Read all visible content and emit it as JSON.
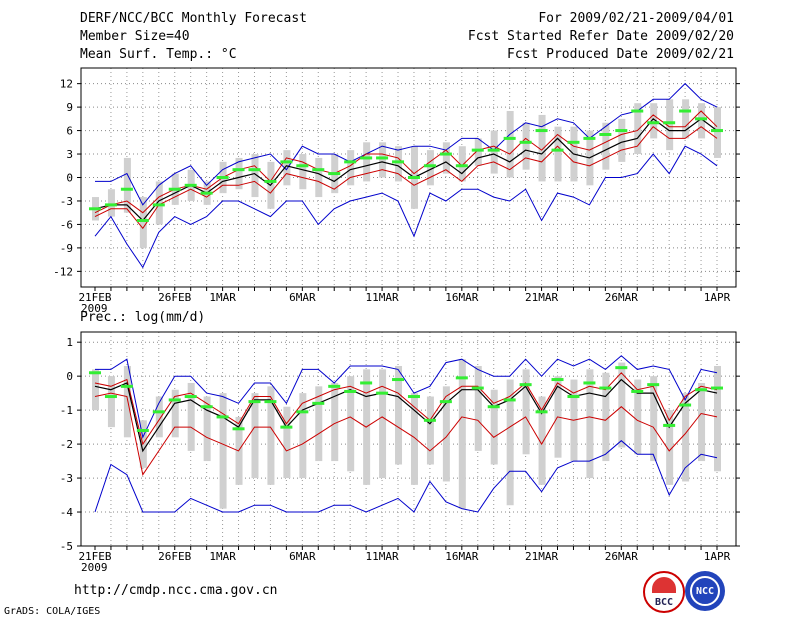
{
  "header": {
    "title": "DERF/NCC/BCC Monthly Forecast",
    "member_size": "Member Size=40",
    "variable": "Mean Surf. Temp.: °C",
    "period": "For 2009/02/21-2009/04/01",
    "fcst_started": "Fcst Started Refer Date 2009/02/20",
    "fcst_produced": "Fcst Produced Date 2009/02/21"
  },
  "footer": {
    "url": "http://cmdp.ncc.cma.gov.cn",
    "credit": "GrADS: COLA/IGES",
    "logo_bcc": "BCC",
    "logo_ncc": "NCC"
  },
  "colors": {
    "envelope": "#0000cc",
    "spread": "#cc0000",
    "mean": "#000000",
    "median": "#33ee33",
    "box": "#d0d0d0"
  },
  "chart_data": [
    {
      "type": "line",
      "title": "Mean Surf. Temp.: °C",
      "ylim": [
        -14,
        14
      ],
      "yticks": [
        -12,
        -9,
        -6,
        -3,
        0,
        3,
        6,
        9,
        12
      ],
      "xlim": [
        0,
        39
      ],
      "xtick_labels": [
        {
          "d": 0,
          "label": "21FEB"
        },
        {
          "d": 5,
          "label": "26FEB"
        },
        {
          "d": 8,
          "label": "1MAR"
        },
        {
          "d": 13,
          "label": "6MAR"
        },
        {
          "d": 18,
          "label": "11MAR"
        },
        {
          "d": 23,
          "label": "16MAR"
        },
        {
          "d": 28,
          "label": "21MAR"
        },
        {
          "d": 33,
          "label": "26MAR"
        },
        {
          "d": 39,
          "label": "1APR"
        }
      ],
      "year_label": "2009",
      "series": [
        {
          "name": "max",
          "values": [
            -0.5,
            -0.5,
            0.5,
            -3.5,
            -1,
            0.5,
            1.5,
            -1,
            1,
            2,
            2.5,
            3,
            1,
            4,
            3,
            3,
            2,
            3,
            4,
            3.5,
            4,
            4,
            3.5,
            5,
            5,
            3.5,
            5.5,
            7,
            6.5,
            7.5,
            7,
            5,
            6.5,
            8,
            8.5,
            10,
            10,
            12,
            10,
            9
          ]
        },
        {
          "name": "upper",
          "values": [
            -4.5,
            -3.5,
            -3,
            -4.5,
            -2.5,
            -1.5,
            -1,
            -1.5,
            0,
            1,
            1.5,
            -0.5,
            2.5,
            2,
            1,
            0.5,
            1.5,
            3,
            3,
            2.5,
            0.5,
            2,
            3.5,
            1.5,
            3.5,
            4,
            3,
            5,
            3.5,
            5.5,
            4,
            3.5,
            4.5,
            5.5,
            6,
            8,
            6.5,
            6.5,
            8.5,
            6.5
          ]
        },
        {
          "name": "mean",
          "values": [
            -4,
            -3.5,
            -3.5,
            -5.5,
            -3,
            -2,
            -1,
            -2,
            -0.5,
            0,
            0.5,
            -1,
            1.5,
            1,
            0.5,
            -0.5,
            1,
            1.5,
            2,
            1.5,
            0,
            1,
            2,
            0.5,
            2.5,
            3,
            2,
            3.5,
            3,
            5,
            3,
            2.5,
            3.5,
            4.5,
            5,
            7.5,
            6,
            6,
            7.5,
            6
          ]
        },
        {
          "name": "lower",
          "values": [
            -5,
            -4,
            -4,
            -6.5,
            -3.5,
            -2.5,
            -1.5,
            -2.5,
            -1,
            -1,
            -0.5,
            -2,
            0.5,
            0,
            -0.5,
            -1.5,
            0,
            0.5,
            1,
            0.5,
            -1,
            0,
            1,
            -0.5,
            1.5,
            2,
            1,
            2.5,
            2,
            4,
            2,
            1.5,
            2.5,
            3.5,
            4,
            6.5,
            5,
            5,
            6.5,
            5
          ]
        },
        {
          "name": "min",
          "values": [
            -7.5,
            -5,
            -8.5,
            -11.5,
            -7,
            -5,
            -6,
            -5,
            -3,
            -3,
            -4,
            -5,
            -3,
            -3,
            -6,
            -4,
            -3,
            -2.5,
            -2,
            -3,
            -7.5,
            -2,
            -3,
            -1.5,
            -1.5,
            -2.5,
            -3,
            -1.5,
            -5.5,
            -2,
            -2.5,
            -3.5,
            0,
            0,
            0.5,
            3,
            0.5,
            4,
            3,
            1.5
          ]
        },
        {
          "name": "median",
          "values": [
            -4,
            -3.5,
            -1.5,
            -5.5,
            -3.5,
            -1.5,
            -1,
            -2,
            0,
            1,
            1,
            -0.5,
            2,
            1.5,
            1,
            0.5,
            2,
            2.5,
            2.5,
            2,
            0,
            1.5,
            3,
            1.5,
            3.5,
            3.5,
            5,
            4.5,
            6,
            3.5,
            4.5,
            5,
            5.5,
            6,
            8.5,
            7,
            7,
            8.5,
            7.5,
            6
          ]
        },
        {
          "name": "box_high",
          "values": [
            -2.5,
            -1.5,
            2.5,
            -2.5,
            -0.5,
            0.5,
            1,
            -0.5,
            2,
            2.5,
            3,
            2,
            3.5,
            3,
            2.5,
            3,
            3.5,
            4.5,
            4.5,
            4,
            4,
            3.5,
            4.5,
            4,
            5,
            6,
            8.5,
            7,
            8,
            6.5,
            6.5,
            6,
            7,
            7.5,
            9.5,
            9.5,
            10,
            10,
            9.5,
            9
          ]
        },
        {
          "name": "box_low",
          "values": [
            -5.5,
            -5,
            -4.5,
            -9,
            -6,
            -3.5,
            -3,
            -3.5,
            -2,
            -1.5,
            -2.5,
            -4,
            -1,
            -1.5,
            -2.5,
            -2,
            -1,
            -0.5,
            0,
            -0.5,
            -4,
            -1,
            0.5,
            -0.5,
            1.5,
            0.5,
            0,
            1,
            -0.5,
            -0.5,
            -0.5,
            -1,
            1,
            2,
            3,
            5,
            3.5,
            5,
            5,
            2.5
          ]
        }
      ]
    },
    {
      "type": "line",
      "title": "Prec.: log(mm/d)",
      "ylim": [
        -5,
        1.3
      ],
      "yticks": [
        -5,
        -4,
        -3,
        -2,
        -1,
        0,
        1
      ],
      "xlim": [
        0,
        39
      ],
      "xtick_labels": [
        {
          "d": 0,
          "label": "21FEB"
        },
        {
          "d": 5,
          "label": "26FEB"
        },
        {
          "d": 8,
          "label": "1MAR"
        },
        {
          "d": 13,
          "label": "6MAR"
        },
        {
          "d": 18,
          "label": "11MAR"
        },
        {
          "d": 23,
          "label": "16MAR"
        },
        {
          "d": 28,
          "label": "21MAR"
        },
        {
          "d": 33,
          "label": "26MAR"
        },
        {
          "d": 39,
          "label": "1APR"
        }
      ],
      "year_label": "2009",
      "series": [
        {
          "name": "max",
          "values": [
            0.2,
            0.2,
            0.5,
            -1.8,
            -0.8,
            0,
            0,
            -0.5,
            -0.6,
            -0.8,
            -0.2,
            -0.2,
            -0.8,
            0.2,
            0.2,
            -0.2,
            0.3,
            0.3,
            0.3,
            0.2,
            -0.5,
            -0.3,
            0.4,
            0.5,
            0.2,
            0,
            0,
            0.5,
            0,
            0.5,
            0.3,
            0.5,
            0.2,
            0.6,
            0.2,
            0.3,
            0.2,
            -0.7,
            0.2,
            0.1
          ]
        },
        {
          "name": "upper",
          "values": [
            -0.2,
            -0.3,
            -0.1,
            -2,
            -1.3,
            -0.6,
            -0.5,
            -0.8,
            -1.1,
            -1.4,
            -0.6,
            -0.6,
            -1.4,
            -0.8,
            -0.6,
            -0.4,
            -0.3,
            -0.5,
            -0.3,
            -0.5,
            -0.9,
            -1.3,
            -0.6,
            -0.3,
            -0.3,
            -0.8,
            -0.6,
            -0.2,
            -1,
            -0.2,
            -0.5,
            -0.3,
            -0.4,
            0.1,
            -0.4,
            -0.3,
            -1.3,
            -0.6,
            -0.3,
            -0.4
          ]
        },
        {
          "name": "mean",
          "values": [
            -0.3,
            -0.4,
            -0.2,
            -2.2,
            -1.5,
            -0.8,
            -0.7,
            -1,
            -1.2,
            -1.5,
            -0.7,
            -0.7,
            -1.5,
            -1,
            -0.8,
            -0.6,
            -0.4,
            -0.6,
            -0.5,
            -0.6,
            -1,
            -1.4,
            -0.8,
            -0.4,
            -0.4,
            -0.9,
            -0.7,
            -0.3,
            -1.1,
            -0.3,
            -0.6,
            -0.5,
            -0.6,
            -0.1,
            -0.5,
            -0.5,
            -1.5,
            -0.8,
            -0.4,
            -0.5
          ]
        },
        {
          "name": "lower",
          "values": [
            -0.6,
            -0.5,
            -0.6,
            -2.9,
            -2.2,
            -1.5,
            -1.5,
            -1.8,
            -2,
            -2.2,
            -1.5,
            -1.5,
            -2.2,
            -2,
            -1.7,
            -1.4,
            -1.2,
            -1.5,
            -1.2,
            -1.5,
            -1.8,
            -2.2,
            -1.8,
            -1.2,
            -1.3,
            -1.8,
            -1.5,
            -1.2,
            -2,
            -1.2,
            -1.3,
            -1.2,
            -1.3,
            -0.9,
            -1.3,
            -1.5,
            -2.2,
            -1.7,
            -1.1,
            -1.2
          ]
        },
        {
          "name": "min",
          "values": [
            -4,
            -2.6,
            -2.9,
            -4,
            -4,
            -4,
            -3.6,
            -3.8,
            -4,
            -4,
            -3.8,
            -3.8,
            -4,
            -4,
            -4,
            -3.8,
            -3.8,
            -4,
            -3.8,
            -3.6,
            -4,
            -3.1,
            -3.7,
            -3.9,
            -4,
            -3.3,
            -2.8,
            -2.8,
            -3.4,
            -2.7,
            -2.5,
            -2.5,
            -2.3,
            -1.9,
            -2.3,
            -2.3,
            -3.5,
            -2.7,
            -2.3,
            -2.4
          ]
        },
        {
          "name": "median",
          "values": [
            0.1,
            -0.6,
            -0.3,
            -1.6,
            -1.05,
            -0.7,
            -0.6,
            -0.9,
            -1.2,
            -1.55,
            -0.75,
            -0.75,
            -1.5,
            -1.05,
            -0.8,
            -0.3,
            -0.45,
            -0.2,
            -0.5,
            -0.1,
            -0.6,
            -1.3,
            -0.75,
            -0.05,
            -0.35,
            -0.9,
            -0.7,
            -0.25,
            -1.05,
            -0.1,
            -0.6,
            -0.2,
            -0.35,
            0.25,
            -0.45,
            -0.25,
            -1.45,
            -0.85,
            -0.4,
            -0.35
          ]
        },
        {
          "name": "box_high",
          "values": [
            0.2,
            0,
            0.3,
            -1.3,
            -0.6,
            -0.4,
            -0.2,
            -0.6,
            -0.5,
            -1.2,
            -0.5,
            -0.3,
            -0.9,
            -0.5,
            -0.3,
            -0.2,
            0,
            0.2,
            0.2,
            0.3,
            -0.5,
            -0.6,
            -0.3,
            0.5,
            0.3,
            -0.4,
            -0.1,
            0.2,
            -0.6,
            0,
            -0.1,
            0.2,
            0.1,
            0.4,
            -0.1,
            0,
            -1,
            -0.5,
            -0.2,
            0.3
          ]
        },
        {
          "name": "box_low",
          "values": [
            -1,
            -1.5,
            -1.8,
            -2.7,
            -1.8,
            -1.8,
            -2.2,
            -2.5,
            -3.9,
            -3.2,
            -3,
            -3.2,
            -3,
            -3,
            -2.5,
            -2.5,
            -2.8,
            -3.2,
            -3,
            -2.6,
            -3.2,
            -2.6,
            -3.1,
            -3.9,
            -2.2,
            -2.6,
            -3.8,
            -2.3,
            -3.2,
            -2.4,
            -2.5,
            -3,
            -2.5,
            -2.1,
            -2.3,
            -2.5,
            -3.2,
            -3.1,
            -2.5,
            -2.8
          ]
        }
      ]
    }
  ]
}
